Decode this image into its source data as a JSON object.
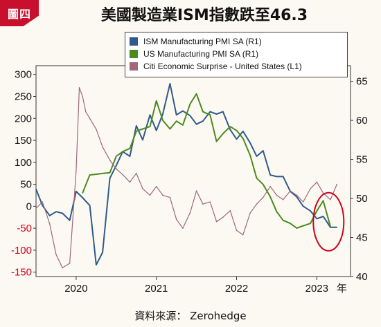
{
  "badge": "圖四",
  "title": "美國製造業ISM指數跌至46.3",
  "source": "資料來源： Zerohedge",
  "chart_data": {
    "type": "line",
    "left_axis": {
      "ticks": [
        300,
        250,
        200,
        150,
        100,
        50,
        0,
        -50,
        -100,
        -150
      ],
      "ylim": [
        -160,
        320
      ]
    },
    "right_axis": {
      "ticks": [
        65,
        60,
        55,
        50,
        45,
        40
      ],
      "ylim": [
        40,
        67
      ]
    },
    "x_ticks": [
      "2020",
      "2021",
      "2022",
      "2023",
      "年"
    ],
    "colors": {
      "ism": "#2f5a8a",
      "us": "#4c8a1e",
      "citi": "#a0677a",
      "negative": "#d0021b",
      "highlight": "#d0021b"
    },
    "series": [
      {
        "name": "ISM Manufacturing PMI SA (R1)",
        "key": "ism",
        "axis": "right",
        "x": [
          2019.5,
          2019.58,
          2019.67,
          2019.75,
          2019.83,
          2019.92,
          2020.0,
          2020.08,
          2020.17,
          2020.25,
          2020.33,
          2020.42,
          2020.5,
          2020.58,
          2020.67,
          2020.75,
          2020.83,
          2020.92,
          2021.0,
          2021.08,
          2021.17,
          2021.25,
          2021.33,
          2021.42,
          2021.5,
          2021.58,
          2021.67,
          2021.75,
          2021.83,
          2021.92,
          2022.0,
          2022.08,
          2022.17,
          2022.25,
          2022.33,
          2022.42,
          2022.5,
          2022.58,
          2022.67,
          2022.75,
          2022.83,
          2022.92,
          2023.0,
          2023.08,
          2023.17,
          2023.25
        ],
        "values": [
          51.2,
          49.1,
          47.8,
          48.3,
          48.1,
          47.2,
          50.9,
          50.1,
          49.1,
          41.5,
          43.1,
          52.6,
          54.2,
          56.0,
          55.4,
          59.3,
          57.5,
          60.7,
          58.7,
          60.8,
          64.7,
          60.7,
          61.2,
          60.6,
          59.5,
          59.9,
          61.1,
          60.8,
          61.1,
          58.8,
          57.6,
          58.6,
          57.1,
          55.4,
          56.1,
          53.0,
          52.8,
          52.8,
          50.9,
          50.2,
          49.0,
          48.4,
          47.4,
          47.7,
          46.3,
          46.3
        ]
      },
      {
        "name": "US Manufacturing PMI SA (R1)",
        "key": "us",
        "axis": "right",
        "x": [
          2020.08,
          2020.17,
          2020.25,
          2020.33,
          2020.42,
          2020.5,
          2020.58,
          2020.67,
          2020.75,
          2020.83,
          2020.92,
          2021.0,
          2021.08,
          2021.17,
          2021.25,
          2021.33,
          2021.42,
          2021.5,
          2021.58,
          2021.67,
          2021.75,
          2021.83,
          2021.92,
          2022.0,
          2022.08,
          2022.17,
          2022.25,
          2022.33,
          2022.42,
          2022.5,
          2022.58,
          2022.67,
          2022.75,
          2022.83,
          2022.92,
          2023.0,
          2023.08,
          2023.17
        ],
        "values": [
          50.7,
          53.0,
          53.1,
          53.2,
          53.3,
          55.4,
          56.0,
          56.4,
          58.6,
          58.9,
          59.2,
          62.5,
          60.0,
          58.9,
          59.9,
          59.4,
          62.1,
          63.4,
          61.1,
          60.7,
          57.3,
          58.3,
          59.2,
          58.7,
          57.7,
          55.5,
          52.6,
          51.8,
          50.2,
          48.3,
          47.2,
          46.8,
          46.2,
          46.5,
          46.8,
          48.4,
          49.7,
          46.4
        ]
      },
      {
        "name": "Citi Economic Surprise - United States (L1)",
        "key": "citi",
        "axis": "left",
        "x": [
          2019.5,
          2019.58,
          2019.67,
          2019.75,
          2019.83,
          2019.92,
          2020.0,
          2020.04,
          2020.08,
          2020.12,
          2020.17,
          2020.25,
          2020.33,
          2020.42,
          2020.5,
          2020.58,
          2020.67,
          2020.75,
          2020.83,
          2020.92,
          2021.0,
          2021.08,
          2021.17,
          2021.25,
          2021.33,
          2021.42,
          2021.5,
          2021.58,
          2021.67,
          2021.75,
          2021.83,
          2021.92,
          2022.0,
          2022.08,
          2022.17,
          2022.25,
          2022.33,
          2022.42,
          2022.5,
          2022.58,
          2022.67,
          2022.75,
          2022.83,
          2022.92,
          2023.0,
          2023.08,
          2023.17,
          2023.25
        ],
        "values": [
          -5,
          10,
          -40,
          -110,
          -140,
          -130,
          80,
          270,
          250,
          215,
          200,
          175,
          135,
          105,
          85,
          72,
          55,
          75,
          40,
          25,
          45,
          25,
          20,
          -30,
          -50,
          -15,
          35,
          5,
          10,
          -35,
          -25,
          -10,
          -55,
          -65,
          -15,
          5,
          20,
          45,
          25,
          15,
          35,
          25,
          10,
          40,
          55,
          30,
          15,
          50
        ]
      }
    ]
  }
}
